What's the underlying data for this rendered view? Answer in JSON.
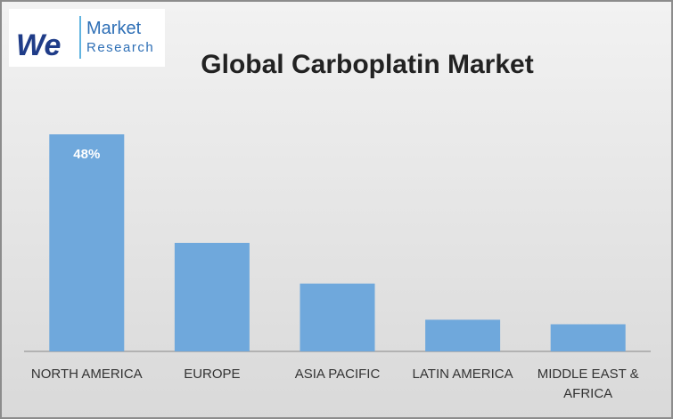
{
  "logo": {
    "mark": "We",
    "line1": "Market",
    "line2": "Research"
  },
  "chart_data": {
    "type": "bar",
    "title": "Global Carboplatin Market",
    "categories": [
      "NORTH AMERICA",
      "EUROPE",
      "ASIA PACIFIC",
      "LATIN AMERICA",
      "MIDDLE EAST & AFRICA"
    ],
    "values": [
      48,
      24,
      15,
      7,
      6
    ],
    "value_labels": [
      "48%",
      null,
      null,
      null,
      null
    ],
    "color": "#6fa8dc"
  }
}
